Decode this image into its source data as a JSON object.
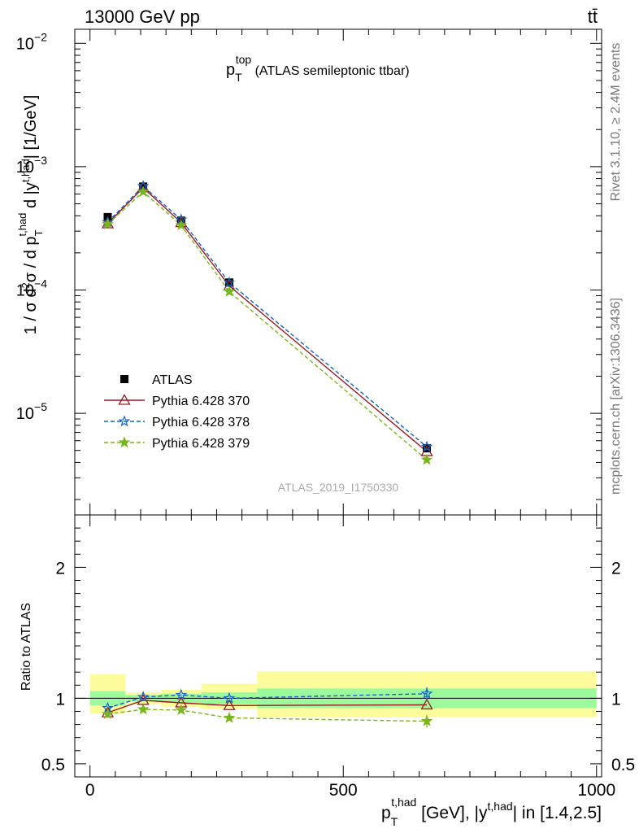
{
  "header": {
    "energy": "13000 GeV pp",
    "process": "tt̄"
  },
  "side_labels": {
    "rivet": "Rivet 3.1.10, ≥ 2.4M events",
    "mcplots": "mcplots.cern.ch [arXiv:1306.3436]"
  },
  "analysis_id": "ATLAS_2019_I1750330",
  "chart_data": [
    {
      "type": "scatter",
      "title": {
        "main": "p",
        "sub": "T",
        "sup": "top",
        "rest": " (ATLAS semileptonic ttbar)"
      },
      "ylabel": "1 / σ d²σ / d p_T^{t,had} d |y^{t,had}| [1/GeV]",
      "yscale": "log",
      "ylim": [
        1.5e-06,
        0.013
      ],
      "xlim": [
        -30,
        1010
      ],
      "ytick_labels": [
        {
          "value": 1e-05,
          "base": "10",
          "exp": "−5"
        },
        {
          "value": 0.0001,
          "base": "10",
          "exp": "−4"
        },
        {
          "value": 0.001,
          "base": "10",
          "exp": "−3"
        },
        {
          "value": 0.01,
          "base": "10",
          "exp": "−2"
        }
      ],
      "x": [
        35,
        105,
        180,
        275,
        665
      ],
      "series": [
        {
          "name": "ATLAS",
          "values": [
            0.00039,
            0.00069,
            0.000365,
            0.000115,
            5.2e-06
          ],
          "color": "#000000",
          "marker": "square",
          "line": "none"
        },
        {
          "name": "Pythia 6.428 370",
          "values": [
            0.000345,
            0.000675,
            0.000352,
            0.000108,
            4.9e-06
          ],
          "color": "#9a1a22",
          "marker": "triangle-open",
          "line": "solid"
        },
        {
          "name": "Pythia 6.428 378",
          "values": [
            0.000355,
            0.000695,
            0.000372,
            0.000115,
            5.35e-06
          ],
          "color": "#1565c0",
          "marker": "star",
          "line": "dashed"
        },
        {
          "name": "Pythia 6.428 379",
          "values": [
            0.000342,
            0.000625,
            0.000335,
            9.7e-05,
            4.2e-06
          ],
          "color": "#7ab51d",
          "marker": "star",
          "line": "dashed"
        }
      ],
      "legend_position": "lower-left"
    },
    {
      "type": "scatter",
      "ylabel": "Ratio to ATLAS",
      "ylim": [
        0.4,
        2.4
      ],
      "ytick_labels": [
        "0.5",
        "1",
        "2"
      ],
      "ytick_values": [
        0.5,
        1,
        2
      ],
      "xlim": [
        -30,
        1010
      ],
      "xtick_labels": [
        "0",
        "500",
        "1000"
      ],
      "xtick_values": [
        0,
        500,
        1000
      ],
      "xlabel": {
        "p": "p",
        "sub": "T",
        "sup": "t,had",
        "rest1": " [GeV], |y",
        "sup2": "t,had",
        "rest2": "| in [1.4,2.5]"
      },
      "x": [
        35,
        105,
        180,
        275,
        665
      ],
      "uncertainty_bands": [
        {
          "x_range": [
            0,
            70
          ],
          "inner": [
            0.945,
            1.055
          ],
          "outer": [
            0.885,
            1.185
          ]
        },
        {
          "x_range": [
            70,
            140
          ],
          "inner": [
            0.975,
            1.025
          ],
          "outer": [
            0.955,
            1.045
          ]
        },
        {
          "x_range": [
            140,
            220
          ],
          "inner": [
            0.965,
            1.035
          ],
          "outer": [
            0.935,
            1.065
          ]
        },
        {
          "x_range": [
            220,
            330
          ],
          "inner": [
            0.955,
            1.045
          ],
          "outer": [
            0.92,
            1.11
          ]
        },
        {
          "x_range": [
            330,
            1000
          ],
          "inner": [
            0.925,
            1.075
          ],
          "outer": [
            0.855,
            1.205
          ]
        }
      ],
      "series": [
        {
          "name": "Pythia 6.428 370",
          "values": [
            0.89,
            0.985,
            0.965,
            0.945,
            0.95
          ],
          "color": "#9a1a22"
        },
        {
          "name": "Pythia 6.428 378",
          "values": [
            0.925,
            1.01,
            1.025,
            1.0,
            1.035
          ],
          "color": "#1565c0"
        },
        {
          "name": "Pythia 6.428 379",
          "values": [
            0.88,
            0.915,
            0.91,
            0.85,
            0.825
          ],
          "color": "#7ab51d"
        }
      ],
      "colors": {
        "inner_band": "#9cfa9c",
        "outer_band": "#fcfc9c"
      }
    }
  ]
}
